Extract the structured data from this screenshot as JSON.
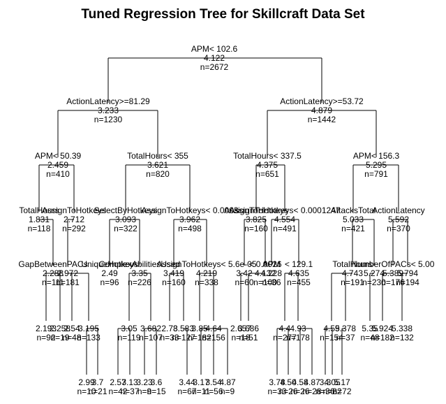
{
  "title": "Tuned Regression Tree for Skillcraft Data Set",
  "nodes": [
    {
      "id": "n1",
      "split": "APM< 102.6",
      "value": "4.122",
      "count": "n=2672"
    },
    {
      "id": "n2",
      "split": "ActionLatency>=81.29",
      "value": "3.233",
      "count": "n=1230"
    },
    {
      "id": "n3",
      "split": "ActionLatency>=53.72",
      "value": "4.879",
      "count": "n=1442"
    },
    {
      "id": "n4",
      "split": "APM< 50.39",
      "value": "2.459",
      "count": "n=410"
    },
    {
      "id": "n5",
      "split": "TotalHours< 355",
      "value": "3.621",
      "count": "n=820"
    },
    {
      "id": "n6",
      "split": "TotalHours< 337.5",
      "value": "4.375",
      "count": "n=651"
    },
    {
      "id": "n7",
      "split": "APM< 156.3",
      "value": "5.295",
      "count": "n=791"
    },
    {
      "id": "n8",
      "split": "TotalHours",
      "value": "1.831",
      "count": "n=118"
    },
    {
      "id": "n9",
      "split": "AssignToHotkeys",
      "value": "2.712",
      "count": "n=292"
    },
    {
      "id": "n10",
      "split": "SelectByHotkeys",
      "value": "3.093",
      "count": "n=322"
    },
    {
      "id": "n11",
      "split": "AssignToHotkeys< 0.0003",
      "value": "3.962",
      "count": "n=498"
    },
    {
      "id": "n12",
      "split": "AssignToHotkeys",
      "value": "3.825",
      "count": "n=160"
    },
    {
      "id": "n13",
      "split": "AssignToHotkeys< 0.0001247",
      "value": "4.554",
      "count": "n=491"
    },
    {
      "id": "n14",
      "split": "AttacksTotal",
      "value": "5.033",
      "count": "n=421"
    },
    {
      "id": "n15",
      "split": "ActionLatency",
      "value": "5.592",
      "count": "n=370"
    },
    {
      "id": "l16",
      "split": "GapBetweenPACs",
      "value": "2.288",
      "count": "n=111"
    },
    {
      "id": "l17",
      "split": "",
      "value": "2.972",
      "count": "n=181"
    },
    {
      "id": "l18",
      "split": "UniqueHotkeys",
      "value": "2.49",
      "count": "n=96"
    },
    {
      "id": "l19",
      "split": "ComplexAbilitiesUsed",
      "value": "3.35",
      "count": "n=226"
    },
    {
      "id": "l20",
      "split": "",
      "value": "3.419",
      "count": "n=160"
    },
    {
      "id": "l21",
      "split": "AssignToHotkeys< 5.6e-05",
      "value": "4.219",
      "count": "n=338"
    },
    {
      "id": "l22",
      "split": "",
      "value": "3.42",
      "count": "n=60"
    },
    {
      "id": "l23",
      "split": "< 0.0026",
      "value": "4.132",
      "count": "n=100"
    },
    {
      "id": "l24",
      "split": "APM",
      "value": "4.228",
      "count": "n=36"
    },
    {
      "id": "l25",
      "split": "< 129.1",
      "value": "4.635",
      "count": "n=455"
    },
    {
      "id": "l26",
      "split": "TotalHours",
      "value": "4.743",
      "count": "n=191"
    },
    {
      "id": "l27",
      "split": "",
      "value": "5.274",
      "count": "n=230"
    },
    {
      "id": "l28",
      "split": "NumberOfPACs< 5.00",
      "value": "5.389",
      "count": "n=176"
    },
    {
      "id": "l29",
      "split": "",
      "value": "5.794",
      "count": "n=194"
    },
    {
      "id": "m30",
      "value": "2.193",
      "count": "n=92"
    },
    {
      "id": "m31",
      "value": "2.258",
      "count": "n=19"
    },
    {
      "id": "m32",
      "value": "2.54",
      "count": "n=48"
    },
    {
      "id": "m33",
      "value": "3.195",
      "count": "n=133"
    },
    {
      "id": "m34",
      "value": "3.05",
      "count": "n=119"
    },
    {
      "id": "m35",
      "value": "3.682",
      "count": "n=107"
    },
    {
      "id": "m36",
      "value": "2.78",
      "count": "n=33"
    },
    {
      "id": "m37",
      "value": "3.583",
      "count": "n=127"
    },
    {
      "id": "m38",
      "value": "3.85",
      "count": "n=182"
    },
    {
      "id": "m39",
      "value": "4.64",
      "count": "n=156"
    },
    {
      "id": "m40",
      "value": "2.657",
      "count": "n=18"
    },
    {
      "id": "m41",
      "value": "3.686",
      "count": "n=51"
    },
    {
      "id": "m42",
      "value": "4.4",
      "count": "n=277"
    },
    {
      "id": "m43",
      "value": "4.93",
      "count": "n=178"
    },
    {
      "id": "m44",
      "value": "4.59",
      "count": "n=154"
    },
    {
      "id": "m45",
      "value": "5.378",
      "count": "n=37"
    },
    {
      "id": "m46",
      "value": "5.35",
      "count": "n=48"
    },
    {
      "id": "m47",
      "value": "5.924",
      "count": "n=182"
    },
    {
      "id": "m48",
      "value": "5.338",
      "count": "n=132"
    },
    {
      "id": "b49",
      "value": "2.99",
      "count": "n=10"
    },
    {
      "id": "b50",
      "value": "3.7",
      "count": "n=21"
    },
    {
      "id": "b51",
      "value": "2.57",
      "count": "n=42"
    },
    {
      "id": "b52",
      "value": "3.13",
      "count": "n=37"
    },
    {
      "id": "b53",
      "value": "3.23",
      "count": "n=9"
    },
    {
      "id": "b54",
      "value": "3.6",
      "count": "n=15"
    },
    {
      "id": "b55",
      "value": "3.44",
      "count": "n=67"
    },
    {
      "id": "b56",
      "value": "3.17",
      "count": "n=11"
    },
    {
      "id": "b57",
      "value": "3.54",
      "count": "n=56"
    },
    {
      "id": "b58",
      "value": "4.87",
      "count": "n=9"
    },
    {
      "id": "b59",
      "value": "3.78",
      "count": "n=33"
    },
    {
      "id": "b60",
      "value": "4.50",
      "count": "n=26"
    },
    {
      "id": "b61",
      "value": "4.58",
      "count": "n=26"
    },
    {
      "id": "b62",
      "value": "4.87",
      "count": "n=28"
    },
    {
      "id": "b63",
      "value": "3.3",
      "count": "n=36"
    },
    {
      "id": "b64",
      "value": "4.05",
      "count": "n=82"
    },
    {
      "id": "b65",
      "value": "5.17",
      "count": "n=72"
    }
  ]
}
